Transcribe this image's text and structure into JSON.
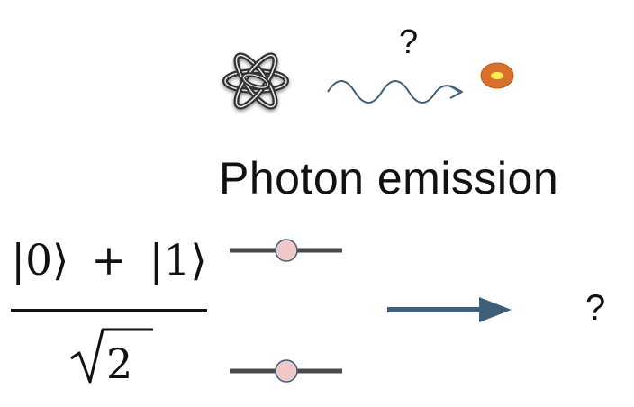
{
  "diagram": {
    "top_question": "?",
    "title": "Photon emission",
    "superposition": {
      "ket0": "|0⟩",
      "plus": "+",
      "ket1": "|1⟩",
      "sqrt_symbol": "√",
      "denominator_value": "2"
    },
    "right_question": "?"
  },
  "icons": {
    "atom": "atom-icon",
    "photon": "wavy-arrow-icon",
    "detector": "detector-dot-icon",
    "arrow": "right-arrow-icon"
  },
  "colors": {
    "atom_stroke": "#3a3a3a",
    "photon_wave": "#3d5f78",
    "detector_outer": "#d8702a",
    "detector_inner": "#f7ef52",
    "level_line": "#4a4a4a",
    "level_dot": "#f0c8c8",
    "arrow": "#3d5f78",
    "text": "#111111"
  }
}
